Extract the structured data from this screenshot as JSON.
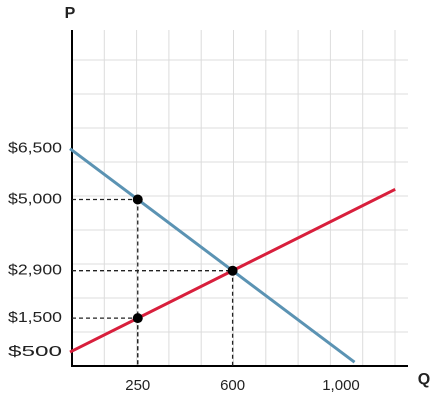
{
  "chart_data": {
    "type": "line",
    "x_label": "Q",
    "y_label": "P",
    "xlim": [
      0,
      1250
    ],
    "ylim": [
      0,
      10000
    ],
    "xticks": [
      250,
      600,
      {
        "value": 1000,
        "label": "1,000"
      }
    ],
    "yticks": [
      {
        "value": 500,
        "label": "$500"
      },
      {
        "value": 1500,
        "label": "$1,500"
      },
      {
        "value": 2900,
        "label": "$2,900"
      },
      {
        "value": 5000,
        "label": "$5,000"
      },
      {
        "value": 6500,
        "label": "$6,500"
      }
    ],
    "series": [
      {
        "color": "#5b93b3",
        "x": [
          0,
          1050
        ],
        "values": [
          6500,
          200
        ]
      },
      {
        "color": "#d81f3c",
        "x": [
          0,
          1200
        ],
        "values": [
          500,
          5300
        ]
      }
    ],
    "points": {
      "color": "#000000",
      "x": [
        250,
        600,
        250
      ],
      "values": [
        5000,
        2900,
        1500
      ]
    }
  }
}
